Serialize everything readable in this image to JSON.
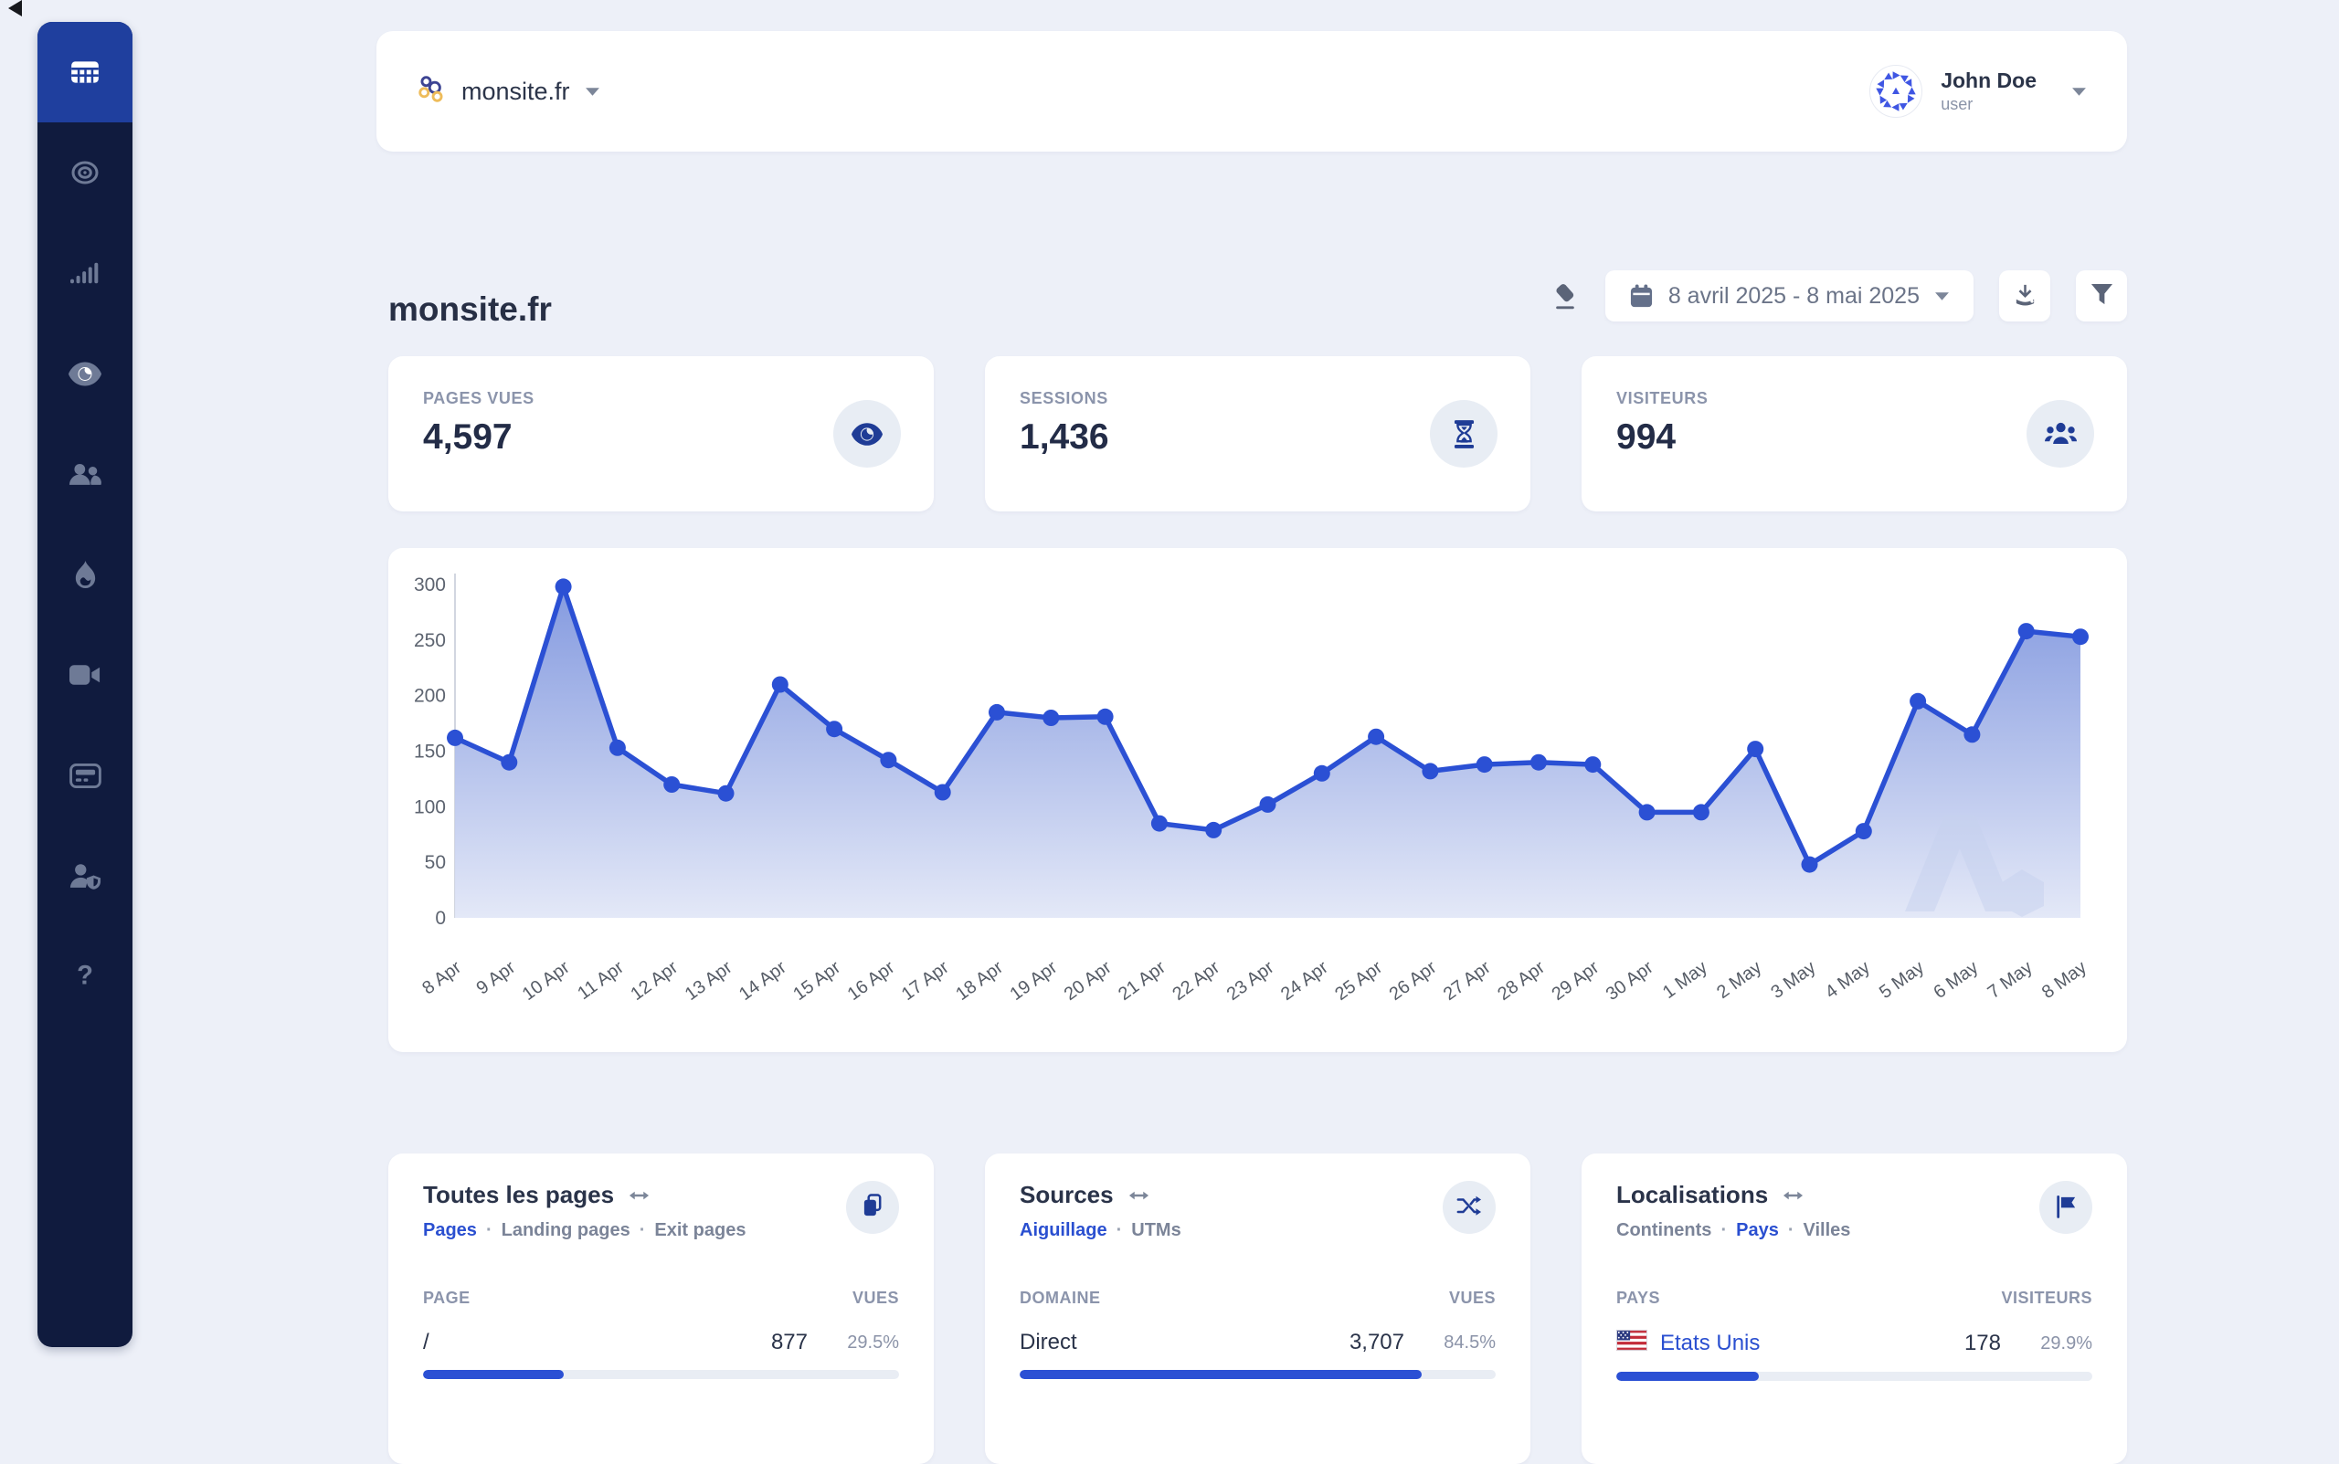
{
  "colors": {
    "accent": "#2b50d4",
    "sidebar_bg": "#101b3e",
    "sidebar_active_bg": "#1f3f9e",
    "icon_navy": "#1f3c96"
  },
  "sidebar": {
    "items": [
      {
        "icon": "grid",
        "active": true
      },
      {
        "icon": "target",
        "active": false
      },
      {
        "icon": "signal",
        "active": false
      },
      {
        "icon": "eye",
        "active": false
      },
      {
        "icon": "users",
        "active": false
      },
      {
        "icon": "flame",
        "active": false
      },
      {
        "icon": "video",
        "active": false
      },
      {
        "icon": "pager",
        "active": false
      },
      {
        "icon": "user-shield",
        "active": false
      },
      {
        "icon": "help",
        "active": false
      }
    ]
  },
  "header": {
    "site_name": "monsite.fr",
    "user_name": "John Doe",
    "user_role": "user"
  },
  "page": {
    "title": "monsite.fr"
  },
  "toolbar": {
    "date_range": "8 avril 2025 - 8 mai 2025"
  },
  "stats": [
    {
      "label": "PAGES VUES",
      "value": "4,597",
      "icon": "stat-eye"
    },
    {
      "label": "SESSIONS",
      "value": "1,436",
      "icon": "hourglass"
    },
    {
      "label": "VISITEURS",
      "value": "994",
      "icon": "group"
    }
  ],
  "chart_data": {
    "type": "area",
    "title": "",
    "xlabel": "",
    "ylabel": "",
    "x": [
      "8 Apr",
      "9 Apr",
      "10 Apr",
      "11 Apr",
      "12 Apr",
      "13 Apr",
      "14 Apr",
      "15 Apr",
      "16 Apr",
      "17 Apr",
      "18 Apr",
      "19 Apr",
      "20 Apr",
      "21 Apr",
      "22 Apr",
      "23 Apr",
      "24 Apr",
      "25 Apr",
      "26 Apr",
      "27 Apr",
      "28 Apr",
      "29 Apr",
      "30 Apr",
      "1 May",
      "2 May",
      "3 May",
      "4 May",
      "5 May",
      "6 May",
      "7 May",
      "8 May"
    ],
    "values": [
      162,
      140,
      298,
      153,
      120,
      112,
      210,
      170,
      142,
      113,
      185,
      180,
      181,
      85,
      79,
      102,
      130,
      163,
      132,
      138,
      140,
      138,
      95,
      95,
      152,
      48,
      78,
      195,
      165,
      258,
      253
    ],
    "ylim": [
      0,
      300
    ],
    "yticks": [
      0,
      50,
      100,
      150,
      200,
      250,
      300
    ],
    "grid": false,
    "legend": null,
    "line_color": "#2b50d4",
    "fill_top": "#7e95de",
    "fill_bottom": "#e2e7f7"
  },
  "panels": [
    {
      "title": "Toutes les pages",
      "icon": "copy",
      "tabs": [
        {
          "label": "Pages",
          "active": true
        },
        {
          "label": "Landing pages",
          "active": false
        },
        {
          "label": "Exit pages",
          "active": false
        }
      ],
      "col1": "PAGE",
      "col2": "VUES",
      "rows": [
        {
          "name": "/",
          "value": "877",
          "pct": "29.5%",
          "bar": 29.5
        }
      ]
    },
    {
      "title": "Sources",
      "icon": "shuffle",
      "tabs": [
        {
          "label": "Aiguillage",
          "active": true
        },
        {
          "label": "UTMs",
          "active": false
        }
      ],
      "col1": "DOMAINE",
      "col2": "VUES",
      "rows": [
        {
          "name": "Direct",
          "value": "3,707",
          "pct": "84.5%",
          "bar": 84.5
        }
      ]
    },
    {
      "title": "Localisations",
      "icon": "flag",
      "tabs": [
        {
          "label": "Continents",
          "active": false
        },
        {
          "label": "Pays",
          "active": true
        },
        {
          "label": "Villes",
          "active": false
        }
      ],
      "col1": "PAYS",
      "col2": "VISITEURS",
      "rows": [
        {
          "name": "Etats Unis",
          "value": "178",
          "pct": "29.9%",
          "bar": 29.9,
          "flag": "us"
        }
      ]
    }
  ]
}
